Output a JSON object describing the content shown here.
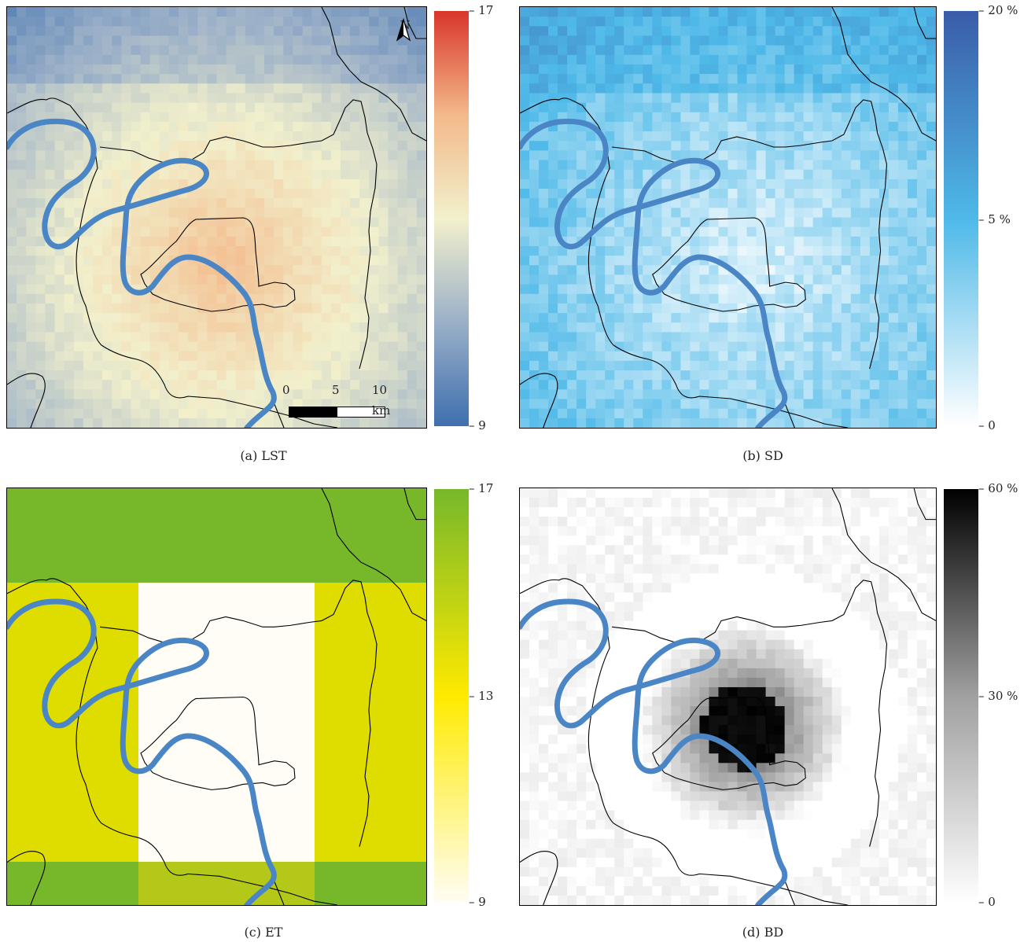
{
  "panels": [
    {
      "id": "a",
      "caption": "(a) LST",
      "colorbar": {
        "max_label": "17",
        "mid_label": "",
        "min_label": "9",
        "colors": [
          "#3e6fae",
          "#9bb0c8",
          "#f2f0cc",
          "#f3b98a",
          "#d9352a"
        ]
      },
      "north_arrow": "N",
      "scale_bar": {
        "labels": [
          "0",
          "5",
          "10"
        ],
        "unit": "km"
      }
    },
    {
      "id": "b",
      "caption": "(b) SD",
      "colorbar": {
        "max_label": "20 %",
        "mid_label": "5 %",
        "min_label": "0",
        "colors": [
          "#ffffff",
          "#4eb9e8",
          "#3a5ca8"
        ]
      }
    },
    {
      "id": "c",
      "caption": "(c) ET",
      "colorbar": {
        "max_label": "17",
        "mid_label": "13",
        "min_label": "9",
        "colors": [
          "#fffdf5",
          "#ffea00",
          "#76b82a"
        ]
      }
    },
    {
      "id": "d",
      "caption": "(d) BD",
      "colorbar": {
        "max_label": "60 %",
        "mid_label": "30 %",
        "min_label": "0",
        "colors": [
          "#ffffff",
          "#a0a0a0",
          "#000000"
        ]
      }
    }
  ],
  "colors": {
    "river": "#4a86c5",
    "border": "#000000"
  }
}
